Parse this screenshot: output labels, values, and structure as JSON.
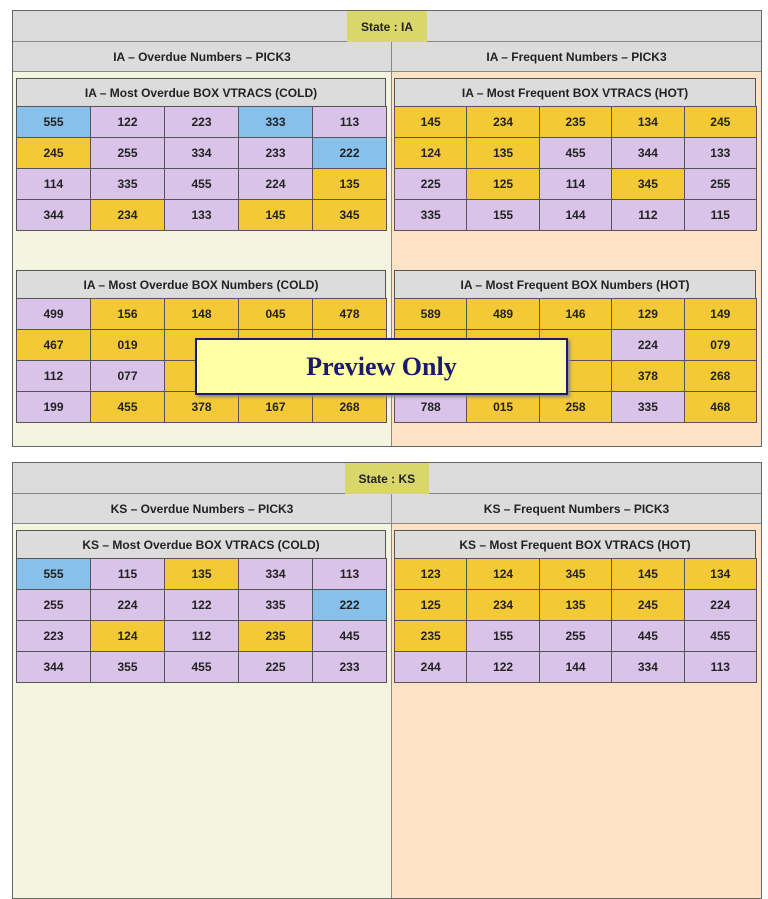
{
  "states": [
    {
      "state_label": "State : IA",
      "columns": [
        {
          "heading": "IA – Overdue Numbers – PICK3",
          "tables": [
            {
              "title": "IA – Most Overdue BOX VTRACS (COLD)",
              "rows": [
                [
                  {
                    "text": "555",
                    "color": "#87c0ea"
                  },
                  {
                    "text": "122",
                    "color": "#d9c3e8"
                  },
                  {
                    "text": "223",
                    "color": "#d9c3e8"
                  },
                  {
                    "text": "333",
                    "color": "#87c0ea"
                  },
                  {
                    "text": "113",
                    "color": "#d9c3e8"
                  }
                ],
                [
                  {
                    "text": "245",
                    "color": "#f3c935"
                  },
                  {
                    "text": "255",
                    "color": "#d9c3e8"
                  },
                  {
                    "text": "334",
                    "color": "#d9c3e8"
                  },
                  {
                    "text": "233",
                    "color": "#d9c3e8"
                  },
                  {
                    "text": "222",
                    "color": "#87c0ea"
                  }
                ],
                [
                  {
                    "text": "114",
                    "color": "#d9c3e8"
                  },
                  {
                    "text": "335",
                    "color": "#d9c3e8"
                  },
                  {
                    "text": "455",
                    "color": "#d9c3e8"
                  },
                  {
                    "text": "224",
                    "color": "#d9c3e8"
                  },
                  {
                    "text": "135",
                    "color": "#f3c935"
                  }
                ],
                [
                  {
                    "text": "344",
                    "color": "#d9c3e8"
                  },
                  {
                    "text": "234",
                    "color": "#f3c935"
                  },
                  {
                    "text": "133",
                    "color": "#d9c3e8"
                  },
                  {
                    "text": "145",
                    "color": "#f3c935"
                  },
                  {
                    "text": "345",
                    "color": "#f3c935"
                  }
                ]
              ]
            },
            {
              "title": "IA – Most Overdue BOX Numbers (COLD)",
              "rows": [
                [
                  {
                    "text": "499",
                    "color": "#d9c3e8"
                  },
                  {
                    "text": "156",
                    "color": "#f3c935"
                  },
                  {
                    "text": "148",
                    "color": "#f3c935"
                  },
                  {
                    "text": "045",
                    "color": "#f3c935"
                  },
                  {
                    "text": "478",
                    "color": "#f3c935"
                  }
                ],
                [
                  {
                    "text": "467",
                    "color": "#f3c935"
                  },
                  {
                    "text": "019",
                    "color": "#f3c935"
                  },
                  null,
                  null,
                  null
                ],
                [
                  {
                    "text": "112",
                    "color": "#d9c3e8"
                  },
                  {
                    "text": "077",
                    "color": "#d9c3e8"
                  },
                  null,
                  null,
                  null
                ],
                [
                  {
                    "text": "199",
                    "color": "#d9c3e8"
                  },
                  {
                    "text": "455",
                    "color": "#f3c935"
                  },
                  {
                    "text": "378",
                    "color": "#f3c935"
                  },
                  {
                    "text": "167",
                    "color": "#f3c935"
                  },
                  {
                    "text": "268",
                    "color": "#f3c935"
                  }
                ]
              ]
            }
          ]
        },
        {
          "heading": "IA – Frequent Numbers – PICK3",
          "tables": [
            {
              "title": "IA – Most Frequent BOX VTRACS (HOT)",
              "rows": [
                [
                  {
                    "text": "145",
                    "color": "#f3c935"
                  },
                  {
                    "text": "234",
                    "color": "#f3c935"
                  },
                  {
                    "text": "235",
                    "color": "#f3c935"
                  },
                  {
                    "text": "134",
                    "color": "#f3c935"
                  },
                  {
                    "text": "245",
                    "color": "#f3c935"
                  }
                ],
                [
                  {
                    "text": "124",
                    "color": "#f3c935"
                  },
                  {
                    "text": "135",
                    "color": "#f3c935"
                  },
                  {
                    "text": "455",
                    "color": "#d9c3e8"
                  },
                  {
                    "text": "344",
                    "color": "#d9c3e8"
                  },
                  {
                    "text": "133",
                    "color": "#d9c3e8"
                  }
                ],
                [
                  {
                    "text": "225",
                    "color": "#d9c3e8"
                  },
                  {
                    "text": "125",
                    "color": "#f3c935"
                  },
                  {
                    "text": "114",
                    "color": "#d9c3e8"
                  },
                  {
                    "text": "345",
                    "color": "#f3c935"
                  },
                  {
                    "text": "255",
                    "color": "#d9c3e8"
                  }
                ],
                [
                  {
                    "text": "335",
                    "color": "#d9c3e8"
                  },
                  {
                    "text": "155",
                    "color": "#d9c3e8"
                  },
                  {
                    "text": "144",
                    "color": "#d9c3e8"
                  },
                  {
                    "text": "112",
                    "color": "#d9c3e8"
                  },
                  {
                    "text": "115",
                    "color": "#d9c3e8"
                  }
                ]
              ]
            },
            {
              "title": "IA – Most Frequent BOX Numbers (HOT)",
              "rows": [
                [
                  {
                    "text": "589",
                    "color": "#f3c935"
                  },
                  {
                    "text": "489",
                    "color": "#f3c935"
                  },
                  {
                    "text": "146",
                    "color": "#f3c935"
                  },
                  {
                    "text": "129",
                    "color": "#f3c935"
                  },
                  {
                    "text": "149",
                    "color": "#f3c935"
                  }
                ],
                [
                  null,
                  null,
                  null,
                  {
                    "text": "224",
                    "color": "#d9c3e8"
                  },
                  {
                    "text": "079",
                    "color": "#f3c935"
                  }
                ],
                [
                  null,
                  null,
                  null,
                  {
                    "text": "378",
                    "color": "#f3c935"
                  },
                  {
                    "text": "268",
                    "color": "#f3c935"
                  }
                ],
                [
                  {
                    "text": "788",
                    "color": "#d9c3e8"
                  },
                  {
                    "text": "015",
                    "color": "#f3c935"
                  },
                  {
                    "text": "258",
                    "color": "#f3c935"
                  },
                  {
                    "text": "335",
                    "color": "#d9c3e8"
                  },
                  {
                    "text": "468",
                    "color": "#f3c935"
                  }
                ]
              ]
            }
          ]
        }
      ]
    },
    {
      "state_label": "State : KS",
      "columns": [
        {
          "heading": "KS – Overdue Numbers – PICK3",
          "tables": [
            {
              "title": "KS – Most Overdue BOX VTRACS (COLD)",
              "rows": [
                [
                  {
                    "text": "555",
                    "color": "#87c0ea"
                  },
                  {
                    "text": "115",
                    "color": "#d9c3e8"
                  },
                  {
                    "text": "135",
                    "color": "#f3c935"
                  },
                  {
                    "text": "334",
                    "color": "#d9c3e8"
                  },
                  {
                    "text": "113",
                    "color": "#d9c3e8"
                  }
                ],
                [
                  {
                    "text": "255",
                    "color": "#d9c3e8"
                  },
                  {
                    "text": "224",
                    "color": "#d9c3e8"
                  },
                  {
                    "text": "122",
                    "color": "#d9c3e8"
                  },
                  {
                    "text": "335",
                    "color": "#d9c3e8"
                  },
                  {
                    "text": "222",
                    "color": "#87c0ea"
                  }
                ],
                [
                  {
                    "text": "223",
                    "color": "#d9c3e8"
                  },
                  {
                    "text": "124",
                    "color": "#f3c935"
                  },
                  {
                    "text": "112",
                    "color": "#d9c3e8"
                  },
                  {
                    "text": "235",
                    "color": "#f3c935"
                  },
                  {
                    "text": "445",
                    "color": "#d9c3e8"
                  }
                ],
                [
                  {
                    "text": "344",
                    "color": "#d9c3e8"
                  },
                  {
                    "text": "355",
                    "color": "#d9c3e8"
                  },
                  {
                    "text": "455",
                    "color": "#d9c3e8"
                  },
                  {
                    "text": "225",
                    "color": "#d9c3e8"
                  },
                  {
                    "text": "233",
                    "color": "#d9c3e8"
                  }
                ]
              ]
            }
          ]
        },
        {
          "heading": "KS – Frequent Numbers – PICK3",
          "tables": [
            {
              "title": "KS – Most Frequent BOX VTRACS (HOT)",
              "rows": [
                [
                  {
                    "text": "123",
                    "color": "#f3c935"
                  },
                  {
                    "text": "124",
                    "color": "#f3c935"
                  },
                  {
                    "text": "345",
                    "color": "#f3c935"
                  },
                  {
                    "text": "145",
                    "color": "#f3c935"
                  },
                  {
                    "text": "134",
                    "color": "#f3c935"
                  }
                ],
                [
                  {
                    "text": "125",
                    "color": "#f3c935"
                  },
                  {
                    "text": "234",
                    "color": "#f3c935"
                  },
                  {
                    "text": "135",
                    "color": "#f3c935"
                  },
                  {
                    "text": "245",
                    "color": "#f3c935"
                  },
                  {
                    "text": "224",
                    "color": "#d9c3e8"
                  }
                ],
                [
                  {
                    "text": "235",
                    "color": "#f3c935"
                  },
                  {
                    "text": "155",
                    "color": "#d9c3e8"
                  },
                  {
                    "text": "255",
                    "color": "#d9c3e8"
                  },
                  {
                    "text": "445",
                    "color": "#d9c3e8"
                  },
                  {
                    "text": "455",
                    "color": "#d9c3e8"
                  }
                ],
                [
                  {
                    "text": "244",
                    "color": "#d9c3e8"
                  },
                  {
                    "text": "122",
                    "color": "#d9c3e8"
                  },
                  {
                    "text": "144",
                    "color": "#d9c3e8"
                  },
                  {
                    "text": "334",
                    "color": "#d9c3e8"
                  },
                  {
                    "text": "113",
                    "color": "#d9c3e8"
                  }
                ]
              ]
            }
          ]
        }
      ]
    }
  ],
  "overlay": "Preview Only"
}
